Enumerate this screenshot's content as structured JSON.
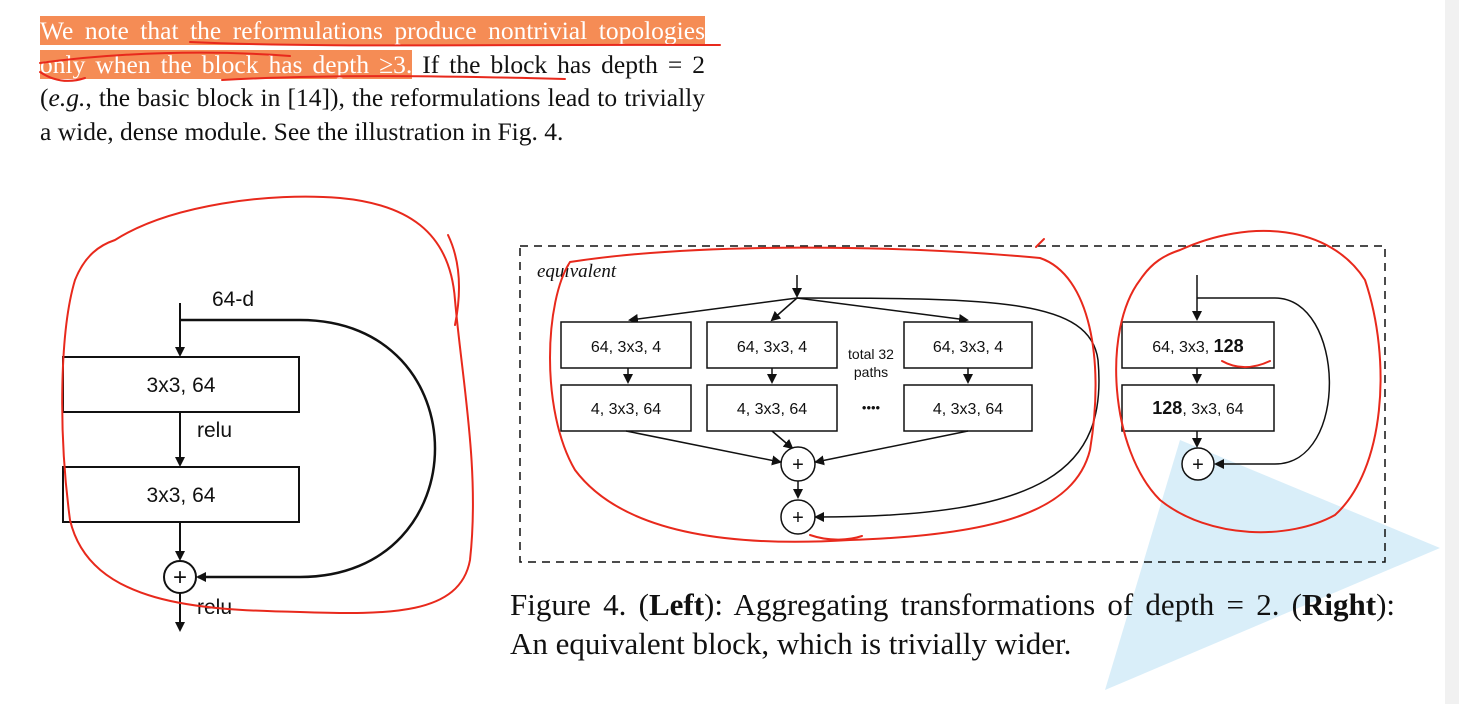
{
  "paragraph": {
    "hl1": "We note that the reformulations produce nontrivial topologies only when the block has depth ≥3.",
    "rest": " If the block has depth = 2 (",
    "eg": "e.g.",
    "rest2": ", the basic block in [14]), the reformulations lead to trivially a wide, dense module. See the illustration in Fig. 4."
  },
  "figure_left": {
    "input_label": "64-d",
    "layer1": "3x3, 64",
    "act1": "relu",
    "layer2": "3x3, 64",
    "act2": "relu",
    "sum_symbol": "+"
  },
  "figure_right": {
    "equivalent_label": "equivalent",
    "path_top": "64, 3x3, 4",
    "path_bottom": "4, 3x3, 64",
    "total_paths_line1": "total 32",
    "total_paths_line2": "paths",
    "dots": "••••",
    "sum_symbol": "+",
    "wide_top_prefix": "64, 3x3, ",
    "wide_top_bold": "128",
    "wide_bottom_bold": "128",
    "wide_bottom_suffix": ", 3x3, 64"
  },
  "caption": {
    "prefix": "Figure 4. (",
    "left_bold": "Left",
    "middle": "):  Aggregating transformations of depth  =  2. (",
    "right_bold": "Right",
    "end": "): An equivalent block, which is trivially wider."
  },
  "colors": {
    "highlight": "#f58c55",
    "annotation_red": "#e8291c",
    "watermark_blue": "#bfe3f5"
  }
}
